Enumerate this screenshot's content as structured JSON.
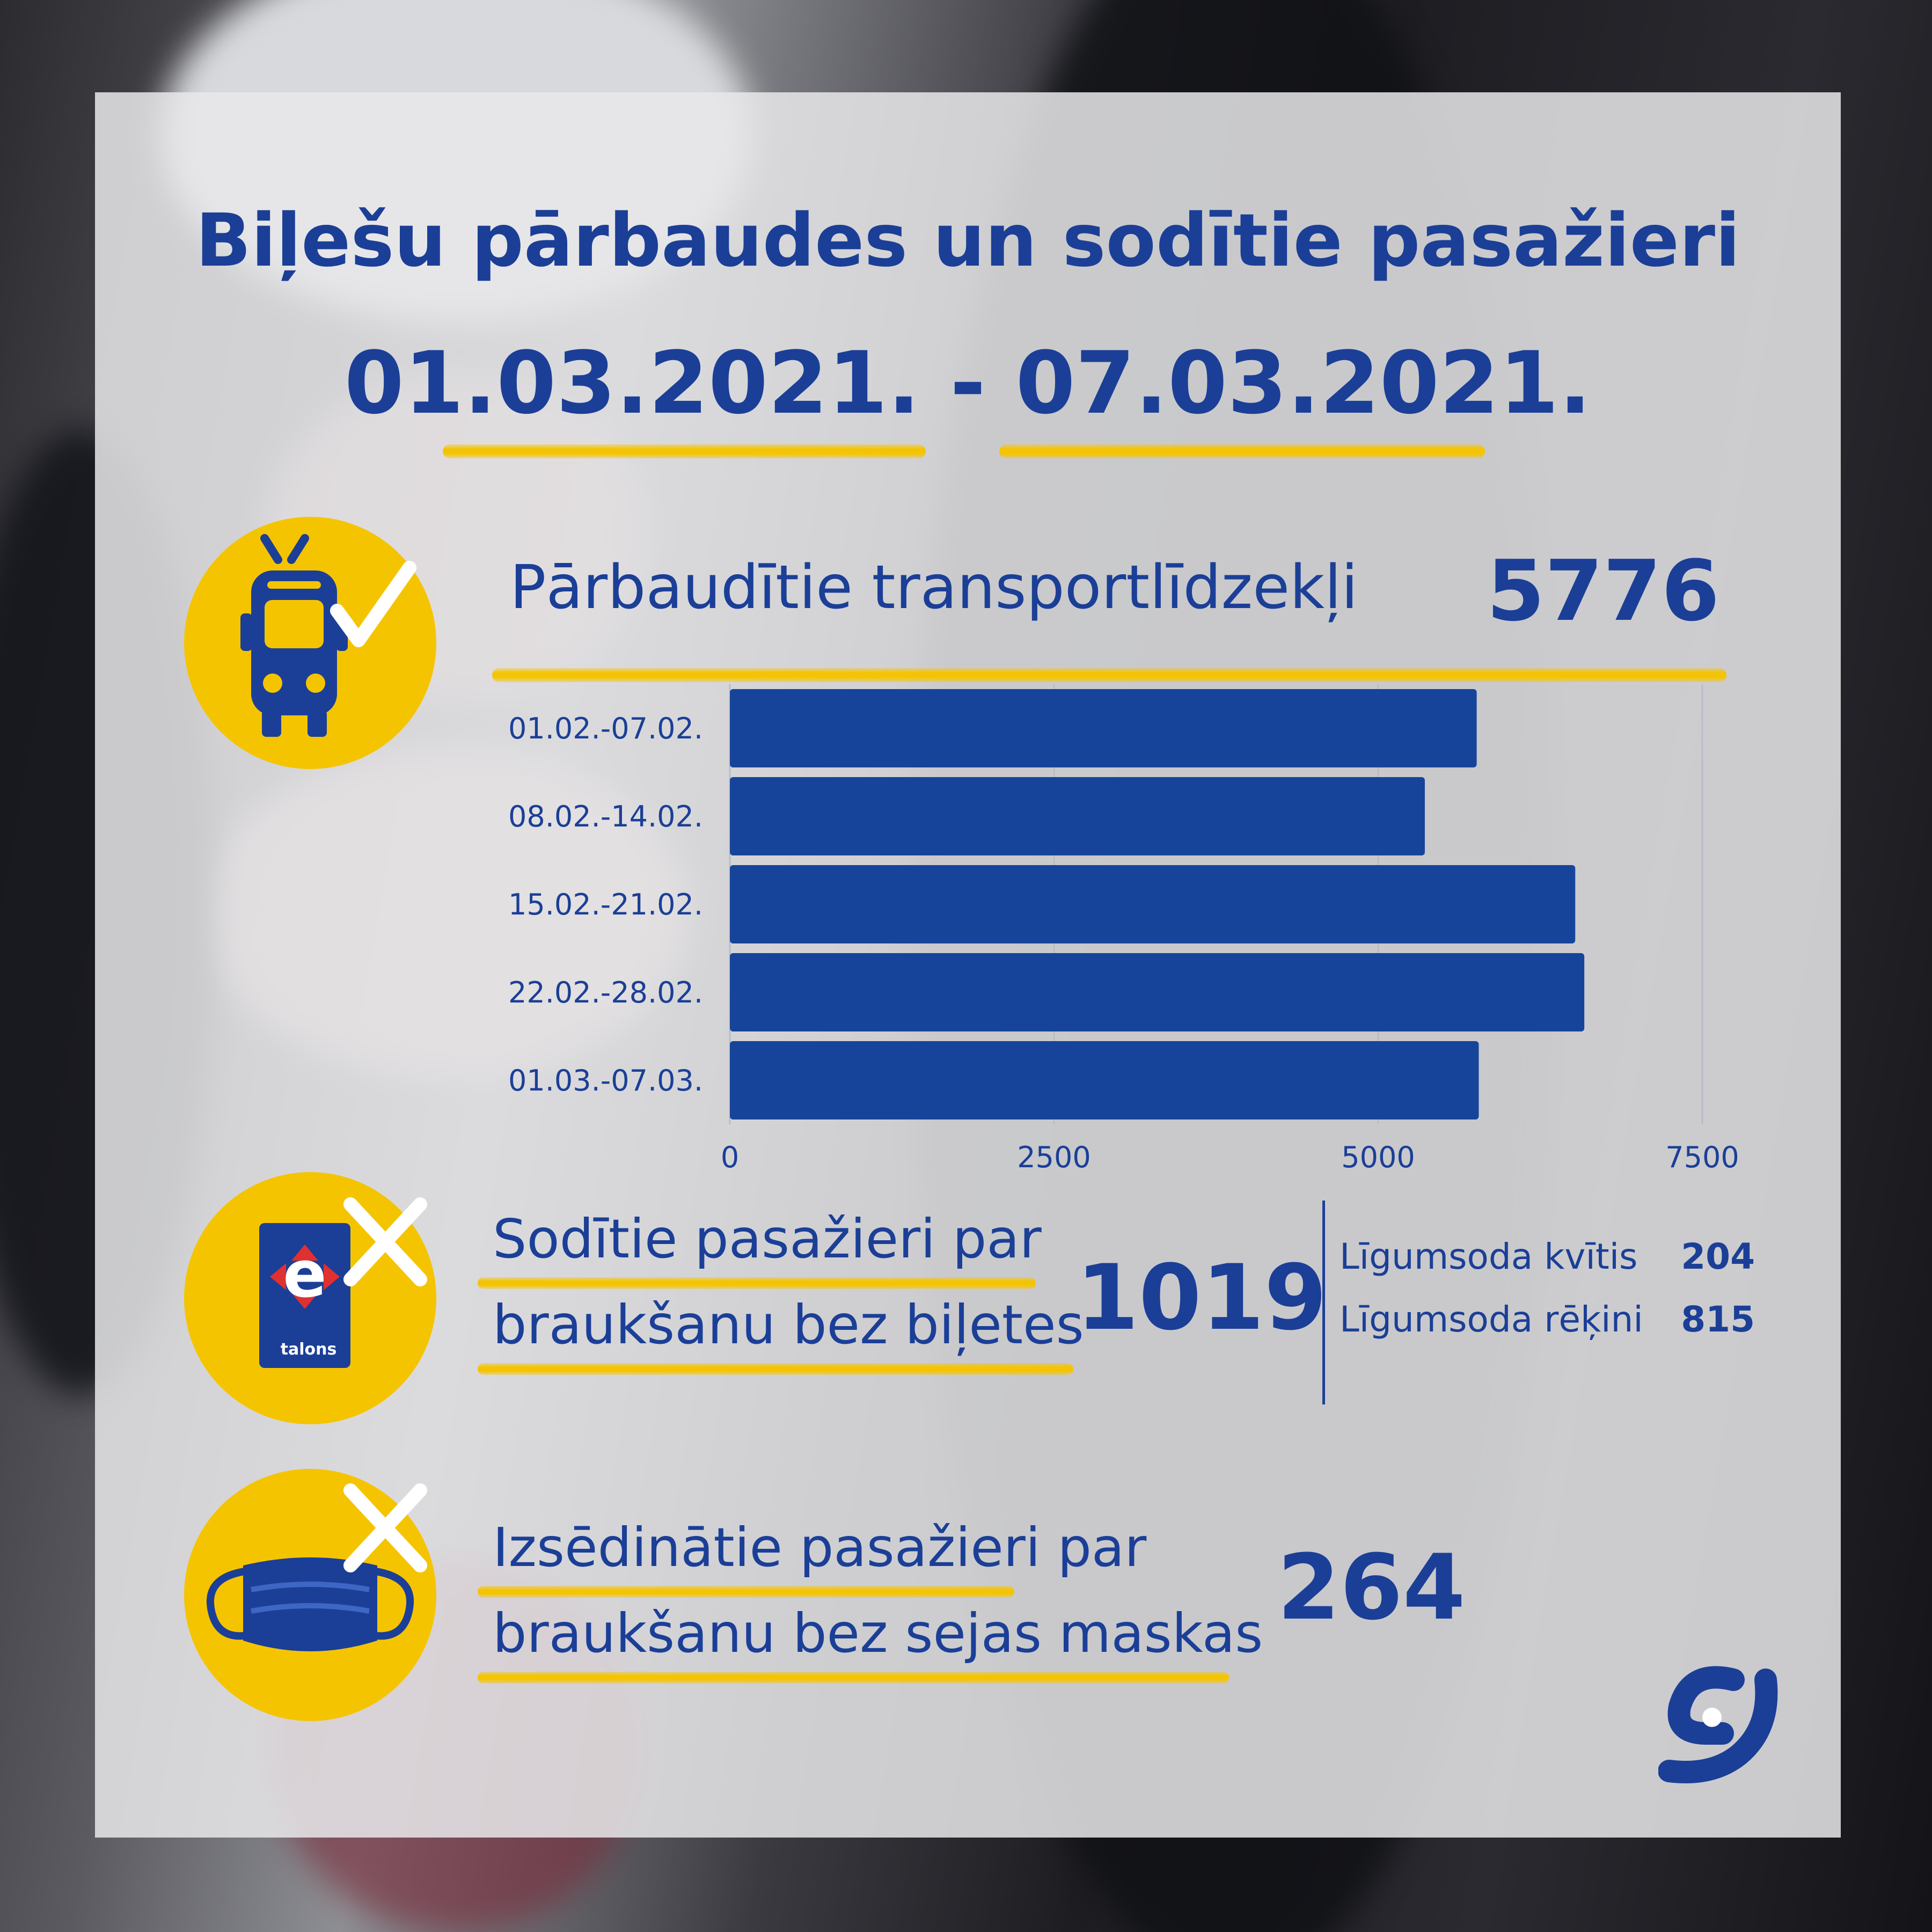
{
  "header": {
    "title": "Biļešu pārbaudes un sodītie pasažieri",
    "date_range": "01.03.2021. - 07.03.2021."
  },
  "vehicles": {
    "icon": "trolleybus-check-icon",
    "label": "Pārbaudītie transportlīdzekļi",
    "value": "5776"
  },
  "fined": {
    "icon": "etalons-card-cross-icon",
    "card_text": "talons",
    "label_line1": "Sodītie pasažieri par",
    "label_line2": "braukšanu bez biļetes",
    "value": "1019",
    "breakdown": [
      {
        "label": "Līgumsoda kvītis",
        "value": "204"
      },
      {
        "label": "Līgumsoda rēķini",
        "value": "815"
      }
    ]
  },
  "masks": {
    "icon": "face-mask-cross-icon",
    "label_line1": "Izsēdinātie pasažieri par",
    "label_line2": "braukšanu bez sejas maskas",
    "value": "264"
  },
  "logo": "rigas-satiksme-logo",
  "colors": {
    "primary_blue": "#1b3f97",
    "bar_blue": "#17449b",
    "accent_yellow": "#f5c400",
    "card_bg": "#e8e8ea"
  },
  "chart_data": {
    "type": "bar",
    "orientation": "horizontal",
    "categories": [
      "01.02.-07.02.",
      "08.02.-14.02.",
      "15.02.-21.02.",
      "22.02.-28.02.",
      "01.03.-07.03."
    ],
    "values": [
      5760,
      5360,
      6520,
      6590,
      5776
    ],
    "xlim": [
      0,
      7500
    ],
    "xticks": [
      "0",
      "2500",
      "5000",
      "7500"
    ],
    "grid": true,
    "legend": "none"
  }
}
